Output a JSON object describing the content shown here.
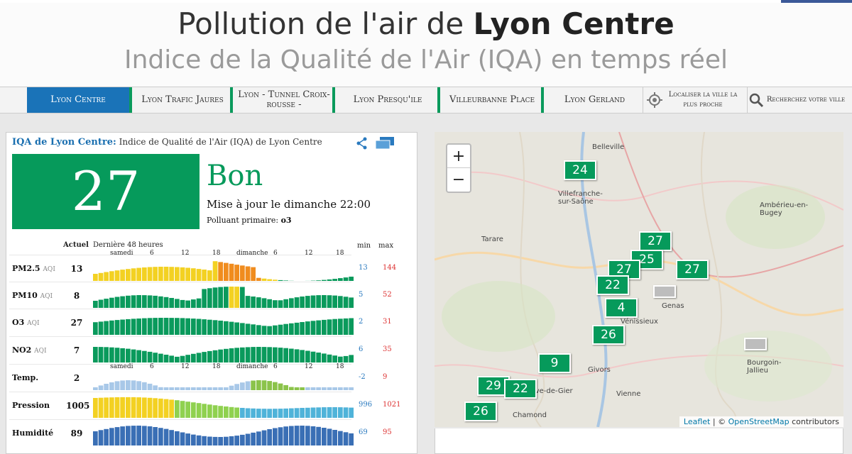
{
  "header": {
    "title_prefix": "Pollution de l'air de ",
    "title_city": "Lyon Centre",
    "subtitle": "Indice de la Qualité de l'Air (IQA) en temps réel"
  },
  "nav": {
    "items": [
      {
        "label": "Lyon Centre",
        "active": true
      },
      {
        "label": "Lyon Trafic Jaures"
      },
      {
        "label": "Lyon - Tunnel Croix-rousse -"
      },
      {
        "label": "Lyon Presqu'ile"
      },
      {
        "label": "Villeurbanne Place"
      },
      {
        "label": "Lyon Gerland"
      }
    ],
    "locate_label": "Localiser la ville la plus proche",
    "search_label": "Recherchez votre ville"
  },
  "aqi": {
    "heading_city": "IQA de Lyon Centre:",
    "heading_text": "Indice de Qualité de l'Air (IQA) de Lyon Centre",
    "value": "27",
    "level": "Bon",
    "updated": "Mise à jour le dimanche 22:00",
    "primary_label": "Polluant primaire:",
    "primary_value": "o3",
    "col_current": "Actuel",
    "col_history": "Dernière 48 heures",
    "col_min": "min",
    "col_max": "max",
    "ticks": [
      "samedi",
      "6",
      "12",
      "18",
      "dimanche",
      "6",
      "12",
      "18"
    ],
    "rows": [
      {
        "label": "PM2.5",
        "unit": "AQI",
        "current": "13",
        "min": "13",
        "max": "144"
      },
      {
        "label": "PM10",
        "unit": "AQI",
        "current": "8",
        "min": "5",
        "max": "52"
      },
      {
        "label": "O3",
        "unit": "AQI",
        "current": "27",
        "min": "2",
        "max": "31"
      },
      {
        "label": "NO2",
        "unit": "AQI",
        "current": "7",
        "min": "6",
        "max": "35"
      },
      {
        "label": "Temp.",
        "unit": "",
        "current": "2",
        "min": "-2",
        "max": "9"
      },
      {
        "label": "Pression",
        "unit": "",
        "current": "1005",
        "min": "996",
        "max": "1021"
      },
      {
        "label": "Humidité",
        "unit": "",
        "current": "89",
        "min": "69",
        "max": "95"
      }
    ]
  },
  "map": {
    "zoom_in": "+",
    "zoom_out": "−",
    "places": [
      "Belleville",
      "Villefranche-sur-Saône",
      "Tarare",
      "Ambérieu-en-Bugey",
      "Givors",
      "Vienne",
      "Bourgoin-Jallieu",
      "Rive-de-Gier",
      "Chamond",
      "Genas",
      "Vénissieux"
    ],
    "markers": [
      "24",
      "27",
      "25",
      "27",
      "27",
      "22",
      "4",
      "26",
      "9",
      "29",
      "22",
      "26"
    ],
    "attribution_leaflet": "Leaflet",
    "attribution_rest": " | © ",
    "attribution_osm": "OpenStreetMap",
    "attribution_tail": " contributors"
  }
}
